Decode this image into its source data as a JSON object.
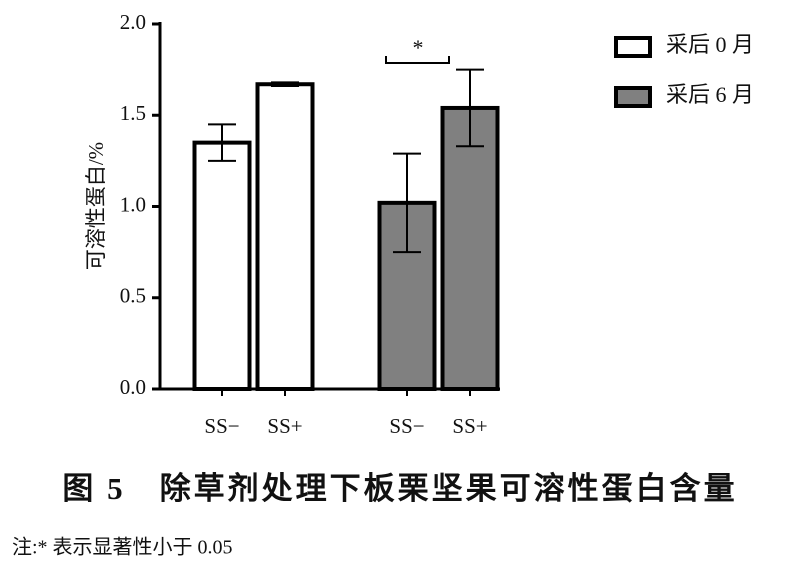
{
  "chart_data": {
    "type": "bar",
    "caption": "图 5　除草剂处理下板栗坚果可溶性蛋白含量",
    "note": "注:* 表示显著性小于 0.05",
    "y_label": "可溶性蛋白/%",
    "categories": [
      "SS−",
      "SS+",
      "SS−",
      "SS+"
    ],
    "series": [
      {
        "name": "采后 0 月",
        "color": "#ffffff",
        "values": [
          1.35,
          1.67,
          null,
          null
        ],
        "errors": [
          0.1,
          0.01,
          null,
          null
        ]
      },
      {
        "name": "采后 6 月",
        "color": "#808080",
        "values": [
          null,
          null,
          1.02,
          1.54
        ],
        "errors": [
          null,
          null,
          0.27,
          0.21
        ]
      }
    ],
    "annotations": [
      "*"
    ],
    "ylim": [
      0,
      2
    ],
    "yticks": [
      {
        "value": 0,
        "label": "0.0"
      },
      0.5,
      {
        "value": 1,
        "label": "1.0"
      },
      1.5,
      {
        "value": 2,
        "label": "2.0"
      }
    ],
    "legend": "top-right"
  }
}
